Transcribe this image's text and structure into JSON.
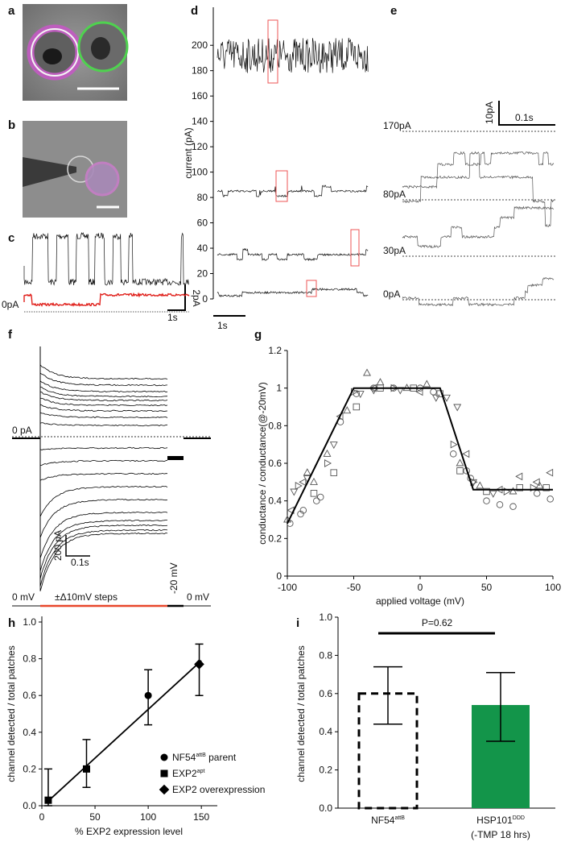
{
  "panel_labels": [
    "a",
    "b",
    "c",
    "d",
    "e",
    "f",
    "g",
    "h",
    "i"
  ],
  "panel_c": {
    "zero_label": "0pA",
    "time_scale": "1s",
    "current_scale": "2pA"
  },
  "panel_e": {
    "trace_labels": [
      "170pA",
      "80pA",
      "30pA",
      "0pA"
    ],
    "current_scale": "10pA",
    "time_scale": "0.1s"
  },
  "panel_f": {
    "zero_label": "0 pA",
    "current_scale": "200 pA",
    "time_scale": "0.1s",
    "protocol": [
      "0 mV",
      "±Δ10mV steps",
      "-20 mV",
      "0 mV"
    ]
  },
  "chart_data": [
    {
      "type": "trace",
      "ylabel": "current (pA)",
      "ylim": [
        0,
        230
      ],
      "yticks": [
        0,
        20,
        40,
        60,
        80,
        100,
        120,
        140,
        160,
        180,
        200
      ],
      "trace_levels": [
        192,
        85,
        35,
        5
      ],
      "time_scale": "1s"
    },
    {
      "type": "scatter",
      "xlabel": "applied voltage (mV)",
      "ylabel": "conductance / conductance(@-20mV)",
      "xlim": [
        -100,
        100
      ],
      "xticks": [
        -100,
        -50,
        0,
        50,
        100
      ],
      "ylim": [
        0,
        1.2
      ],
      "yticks": [
        0,
        0.2,
        0.4,
        0.6,
        0.8,
        1,
        1.2
      ],
      "series": [
        {
          "marker": "circle",
          "color": "#555555",
          "x": [
            -98,
            -90,
            -88,
            -78,
            -75,
            -60,
            -48,
            -35,
            -20,
            0,
            10,
            25,
            35,
            38,
            50,
            60,
            70,
            88,
            98
          ],
          "y": [
            0.28,
            0.33,
            0.35,
            0.4,
            0.42,
            0.82,
            0.97,
            1,
            1,
            1,
            0.98,
            0.65,
            0.56,
            0.52,
            0.4,
            0.38,
            0.37,
            0.44,
            0.41
          ]
        },
        {
          "marker": "triangle-up",
          "color": "#555555",
          "x": [
            -100,
            -85,
            -80,
            -70,
            -55,
            -40,
            -30,
            -10,
            5,
            30,
            45,
            70,
            90
          ],
          "y": [
            0.3,
            0.55,
            0.5,
            0.65,
            0.88,
            1.08,
            1.03,
            1,
            1.02,
            0.6,
            0.48,
            0.45,
            0.48
          ]
        },
        {
          "marker": "triangle-down",
          "color": "#555555",
          "x": [
            -95,
            -85,
            -65,
            -45,
            -35,
            -15,
            12,
            20,
            28,
            40,
            55
          ],
          "y": [
            0.45,
            0.52,
            0.7,
            0.97,
            0.99,
            0.99,
            0.95,
            0.95,
            0.9,
            0.5,
            0.44
          ]
        },
        {
          "marker": "triangle-left",
          "color": "#555555",
          "x": [
            -97,
            -88,
            -60,
            -35,
            0,
            35,
            60,
            75,
            88,
            98
          ],
          "y": [
            0.35,
            0.5,
            0.85,
            1,
            0.98,
            0.65,
            0.46,
            0.53,
            0.5,
            0.55
          ]
        },
        {
          "marker": "triangle-right",
          "color": "#555555",
          "x": [
            -92,
            -70,
            -50,
            -20,
            25,
            40,
            65,
            85
          ],
          "y": [
            0.48,
            0.6,
            0.98,
            1,
            0.7,
            0.5,
            0.45,
            0.47
          ]
        },
        {
          "marker": "square",
          "color": "#555555",
          "x": [
            -80,
            -65,
            -48,
            -30,
            -5,
            15,
            30,
            50,
            75,
            95
          ],
          "y": [
            0.44,
            0.55,
            0.9,
            1,
            1,
            0.97,
            0.56,
            0.45,
            0.47,
            0.47
          ]
        }
      ],
      "fit": {
        "x": [
          -100,
          -50,
          15,
          40,
          100
        ],
        "y": [
          0.28,
          1,
          1,
          0.46,
          0.46
        ]
      }
    },
    {
      "type": "errorscatter",
      "xlabel": "% EXP2 expression level",
      "ylabel": "channel detected / total patches",
      "xlim": [
        0,
        165
      ],
      "xticks": [
        0,
        50,
        100,
        150
      ],
      "ylim": [
        0,
        1
      ],
      "yticks": [
        0,
        0.2,
        0.4,
        0.6,
        0.8,
        1.0
      ],
      "series": [
        {
          "name": {
            "base": "NF54",
            "sup": "attB",
            "suffix": " parent"
          },
          "marker": "circle",
          "x": [
            100
          ],
          "values": [
            0.6
          ],
          "err_low": [
            0.44
          ],
          "err_high": [
            0.74
          ]
        },
        {
          "name": {
            "base": "EXP2",
            "sup": "apt",
            "suffix": ""
          },
          "marker": "square",
          "x": [
            6,
            42
          ],
          "values": [
            0.03,
            0.2
          ],
          "err_low": [
            0,
            0.1
          ],
          "err_high": [
            0.2,
            0.36
          ]
        },
        {
          "name": {
            "base": "EXP2 overexpression",
            "sup": "",
            "suffix": ""
          },
          "marker": "diamond",
          "x": [
            148
          ],
          "values": [
            0.77
          ],
          "err_low": [
            0.6
          ],
          "err_high": [
            0.88
          ]
        }
      ],
      "fit": {
        "x": [
          5,
          150
        ],
        "y": [
          0.02,
          0.79
        ]
      }
    },
    {
      "type": "bar",
      "ylabel": "channel detected / total patches",
      "ylim": [
        0,
        1
      ],
      "yticks": [
        0,
        0.2,
        0.4,
        0.6,
        0.8,
        1.0
      ],
      "categories": [
        {
          "base": "NF54",
          "sup": "attB",
          "note": ""
        },
        {
          "base": "HSP101",
          "sup": "DDD",
          "note": "(-TMP 18 hrs)"
        }
      ],
      "values": [
        0.6,
        0.54
      ],
      "err_low": [
        0.44,
        0.35
      ],
      "err_high": [
        0.74,
        0.71
      ],
      "colors": [
        "none",
        "#13954a"
      ],
      "annotation": "P=0.62"
    }
  ]
}
